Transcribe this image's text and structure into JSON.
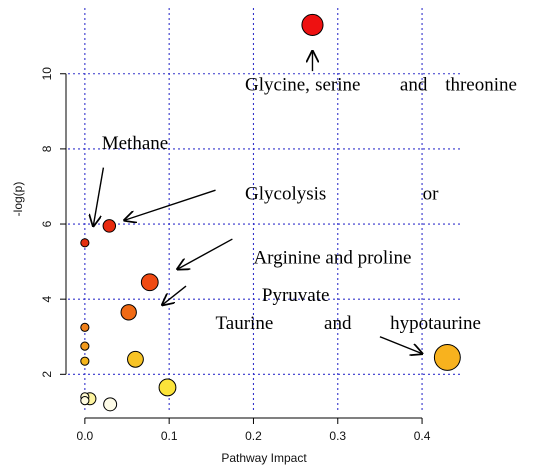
{
  "chart_data": {
    "type": "scatter",
    "xlabel": "Pathway Impact",
    "ylabel": "-log(p)",
    "xlim": [
      -0.02,
      0.445
    ],
    "ylim": [
      1.05,
      11.75
    ],
    "x_ticks": [
      0.0,
      0.1,
      0.2,
      0.3,
      0.4
    ],
    "x_tick_labels": [
      "0.0",
      "0.1",
      "0.2",
      "0.3",
      "0.4"
    ],
    "y_ticks": [
      2,
      4,
      6,
      8,
      10
    ],
    "y_tick_labels": [
      "2",
      "4",
      "6",
      "8",
      "10"
    ],
    "grid": true,
    "points": [
      {
        "x": 0.27,
        "y": 11.3,
        "size": 2.2,
        "color": "#ee1111"
      },
      {
        "x": 0.029,
        "y": 5.95,
        "size": 1.3,
        "color": "#e82a10"
      },
      {
        "x": 0.0,
        "y": 5.5,
        "size": 0.85,
        "color": "#e4300f"
      },
      {
        "x": 0.077,
        "y": 4.45,
        "size": 1.75,
        "color": "#f04a12"
      },
      {
        "x": 0.052,
        "y": 3.65,
        "size": 1.6,
        "color": "#f06a14"
      },
      {
        "x": 0.0,
        "y": 3.25,
        "size": 0.85,
        "color": "#f08018"
      },
      {
        "x": 0.0,
        "y": 2.75,
        "size": 0.85,
        "color": "#f29a1a"
      },
      {
        "x": 0.0,
        "y": 2.35,
        "size": 0.85,
        "color": "#f4b41c"
      },
      {
        "x": 0.43,
        "y": 2.45,
        "size": 2.7,
        "color": "#f8b21e"
      },
      {
        "x": 0.06,
        "y": 2.4,
        "size": 1.65,
        "color": "#f7c325"
      },
      {
        "x": 0.098,
        "y": 1.65,
        "size": 1.75,
        "color": "#fbe33a"
      },
      {
        "x": 0.006,
        "y": 1.35,
        "size": 1.25,
        "color": "#fdf4a0"
      },
      {
        "x": 0.0,
        "y": 1.4,
        "size": 0.85,
        "color": "#fefad0"
      },
      {
        "x": 0.0,
        "y": 1.3,
        "size": 0.85,
        "color": "#fefbe0"
      },
      {
        "x": 0.03,
        "y": 1.2,
        "size": 1.35,
        "color": "#fefce8"
      }
    ],
    "annotations": [
      {
        "text": "Glycine,",
        "x": 0.19,
        "y": 9.55,
        "anchor": "start"
      },
      {
        "text": "serine",
        "x": 0.3,
        "y": 9.55,
        "anchor": "middle"
      },
      {
        "text": "and",
        "x": 0.39,
        "y": 9.55,
        "anchor": "middle"
      },
      {
        "text": "threonine",
        "x": 0.47,
        "y": 9.55,
        "anchor": "middle"
      },
      {
        "text": "Methane",
        "x": 0.02,
        "y": 8.0,
        "anchor": "start"
      },
      {
        "text": "Glycolysis",
        "x": 0.19,
        "y": 6.65,
        "anchor": "start"
      },
      {
        "text": "or",
        "x": 0.41,
        "y": 6.65,
        "anchor": "middle"
      },
      {
        "text": "Arginine and proline",
        "x": 0.2,
        "y": 4.95,
        "anchor": "start"
      },
      {
        "text": "Pyruvate",
        "x": 0.21,
        "y": 3.95,
        "anchor": "start"
      },
      {
        "text": "Taurine",
        "x": 0.155,
        "y": 3.2,
        "anchor": "start"
      },
      {
        "text": "and",
        "x": 0.3,
        "y": 3.2,
        "anchor": "middle"
      },
      {
        "text": "hypotaurine",
        "x": 0.416,
        "y": 3.2,
        "anchor": "middle"
      }
    ],
    "arrows": [
      {
        "from": [
          0.27,
          10.07
        ],
        "to": [
          0.27,
          10.6
        ]
      },
      {
        "from": [
          0.022,
          7.5
        ],
        "to": [
          0.01,
          5.95
        ]
      },
      {
        "from": [
          0.155,
          6.9
        ],
        "to": [
          0.047,
          6.1
        ]
      },
      {
        "from": [
          0.175,
          5.6
        ],
        "to": [
          0.11,
          4.8
        ]
      },
      {
        "from": [
          0.12,
          4.35
        ],
        "to": [
          0.092,
          3.85
        ]
      },
      {
        "from": [
          0.35,
          3.0
        ],
        "to": [
          0.4,
          2.55
        ]
      }
    ]
  }
}
